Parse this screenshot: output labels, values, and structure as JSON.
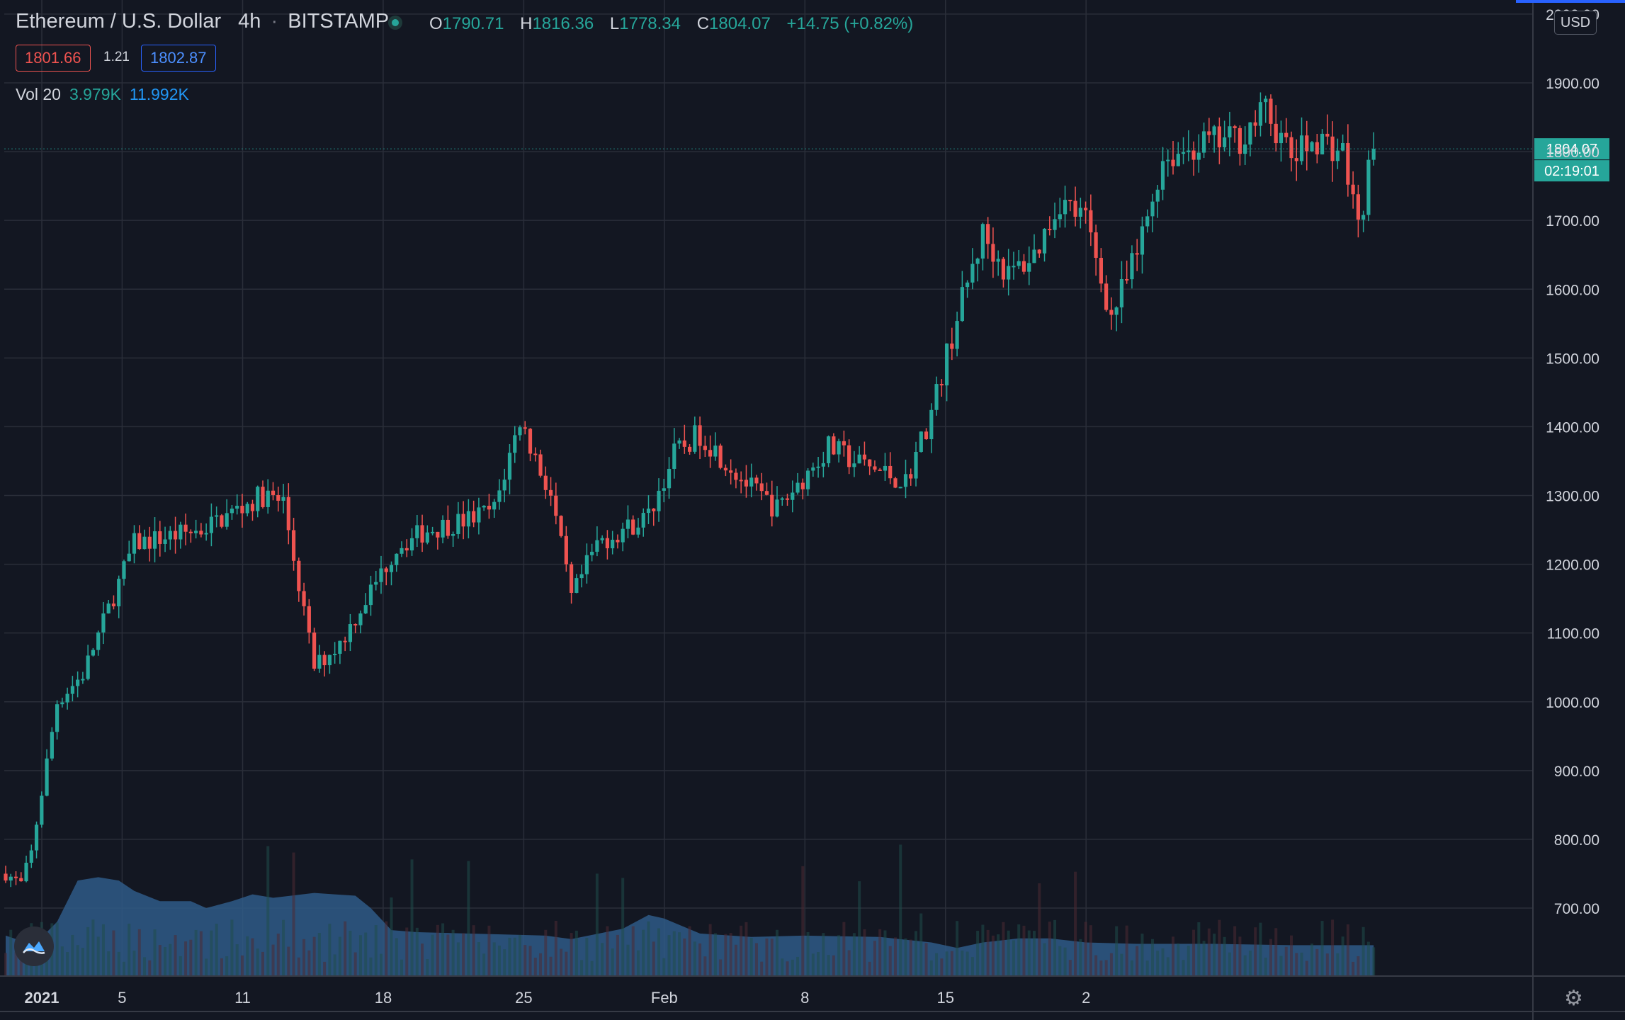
{
  "header": {
    "symbol": "Ethereum / U.S. Dollar",
    "interval": "4h",
    "exchange": "BITSTAMP",
    "sep": "·",
    "ohlc": {
      "o_label": "O",
      "o": "1790.71",
      "h_label": "H",
      "h": "1816.36",
      "l_label": "L",
      "l": "1778.34",
      "c_label": "C",
      "c": "1804.07",
      "change": "+14.75 (+0.82%)"
    },
    "bid": "1801.66",
    "spread": "1.21",
    "ask": "1802.87",
    "vol_label": "Vol 20",
    "vol_value": "3.979K",
    "vol_ma": "11.992K"
  },
  "scale": {
    "currency": "USD",
    "last_price": "1804.07",
    "countdown": "02:19:01",
    "top_partial_label": "2000.00"
  },
  "colors": {
    "up": "#26a69a",
    "down": "#ef5350",
    "bg": "#131722",
    "grid": "#2a2e39",
    "volume_area": "#2f5a87"
  },
  "chart_data": {
    "type": "candlestick",
    "title": "",
    "yticks": [
      700,
      800,
      900,
      1000,
      1100,
      1200,
      1300,
      1400,
      1500,
      1600,
      1700,
      1800,
      1900,
      2000
    ],
    "ylim": [
      620,
      2040
    ],
    "xticks": [
      "2021",
      "5",
      "11",
      "18",
      "25",
      "Feb",
      "8",
      "15",
      "2"
    ],
    "xtick_days": [
      1,
      5,
      11,
      18,
      25,
      32,
      39,
      46,
      53
    ],
    "anchors": [
      [
        0,
        750
      ],
      [
        3,
        735
      ],
      [
        5,
        780
      ],
      [
        10,
        1000
      ],
      [
        15,
        1040
      ],
      [
        25,
        1230
      ],
      [
        38,
        1250
      ],
      [
        50,
        1300
      ],
      [
        54,
        1290
      ],
      [
        60,
        1050
      ],
      [
        65,
        1085
      ],
      [
        76,
        1225
      ],
      [
        82,
        1250
      ],
      [
        90,
        1265
      ],
      [
        95,
        1280
      ],
      [
        100,
        1410
      ],
      [
        106,
        1300
      ],
      [
        110,
        1150
      ],
      [
        115,
        1230
      ],
      [
        125,
        1270
      ],
      [
        130,
        1360
      ],
      [
        135,
        1390
      ],
      [
        145,
        1310
      ],
      [
        150,
        1280
      ],
      [
        160,
        1370
      ],
      [
        165,
        1350
      ],
      [
        175,
        1320
      ],
      [
        180,
        1420
      ],
      [
        185,
        1560
      ],
      [
        190,
        1680
      ],
      [
        195,
        1620
      ],
      [
        200,
        1650
      ],
      [
        205,
        1730
      ],
      [
        210,
        1700
      ],
      [
        215,
        1560
      ],
      [
        220,
        1650
      ],
      [
        225,
        1790
      ],
      [
        232,
        1810
      ],
      [
        240,
        1820
      ],
      [
        245,
        1860
      ],
      [
        250,
        1790
      ],
      [
        255,
        1820
      ],
      [
        260,
        1800
      ],
      [
        263,
        1690
      ],
      [
        266,
        1810
      ]
    ],
    "volume_ma": [
      [
        0,
        660
      ],
      [
        4,
        650
      ],
      [
        5,
        650
      ],
      [
        6,
        650
      ],
      [
        10,
        680
      ],
      [
        14,
        740
      ],
      [
        18,
        745
      ],
      [
        22,
        740
      ],
      [
        25,
        725
      ],
      [
        30,
        710
      ],
      [
        36,
        710
      ],
      [
        39,
        700
      ],
      [
        44,
        710
      ],
      [
        48,
        720
      ],
      [
        52,
        715
      ],
      [
        60,
        722
      ],
      [
        64,
        720
      ],
      [
        68,
        718
      ],
      [
        71,
        700
      ],
      [
        75,
        668
      ],
      [
        80,
        665
      ],
      [
        95,
        662
      ],
      [
        105,
        660
      ],
      [
        110,
        655
      ],
      [
        120,
        670
      ],
      [
        125,
        690
      ],
      [
        128,
        685
      ],
      [
        135,
        663
      ],
      [
        145,
        658
      ],
      [
        155,
        660
      ],
      [
        170,
        658
      ],
      [
        180,
        650
      ],
      [
        185,
        642
      ],
      [
        190,
        650
      ],
      [
        197,
        656
      ],
      [
        203,
        656
      ],
      [
        210,
        650
      ],
      [
        220,
        648
      ],
      [
        235,
        648
      ],
      [
        250,
        646
      ],
      [
        266,
        646
      ]
    ]
  }
}
